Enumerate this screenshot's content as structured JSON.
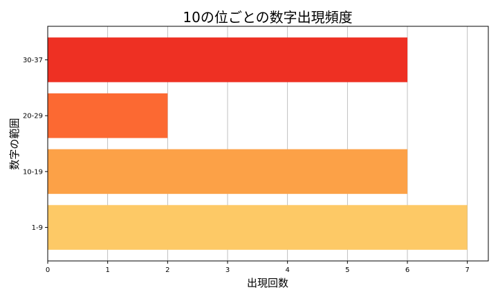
{
  "chart_data": {
    "type": "bar",
    "orientation": "horizontal",
    "title": "10の位ごとの数字出現頻度",
    "xlabel": "出現回数",
    "ylabel": "数字の範囲",
    "categories": [
      "1-9",
      "10-19",
      "20-29",
      "30-37"
    ],
    "values": [
      7,
      6,
      2,
      6
    ],
    "colors": [
      "#fdc966",
      "#fca147",
      "#fc6932",
      "#ee3023"
    ],
    "xlim": [
      0,
      7.35
    ],
    "xticks": [
      0,
      1,
      2,
      3,
      4,
      5,
      6,
      7
    ],
    "grid": "x",
    "legend": "none"
  }
}
